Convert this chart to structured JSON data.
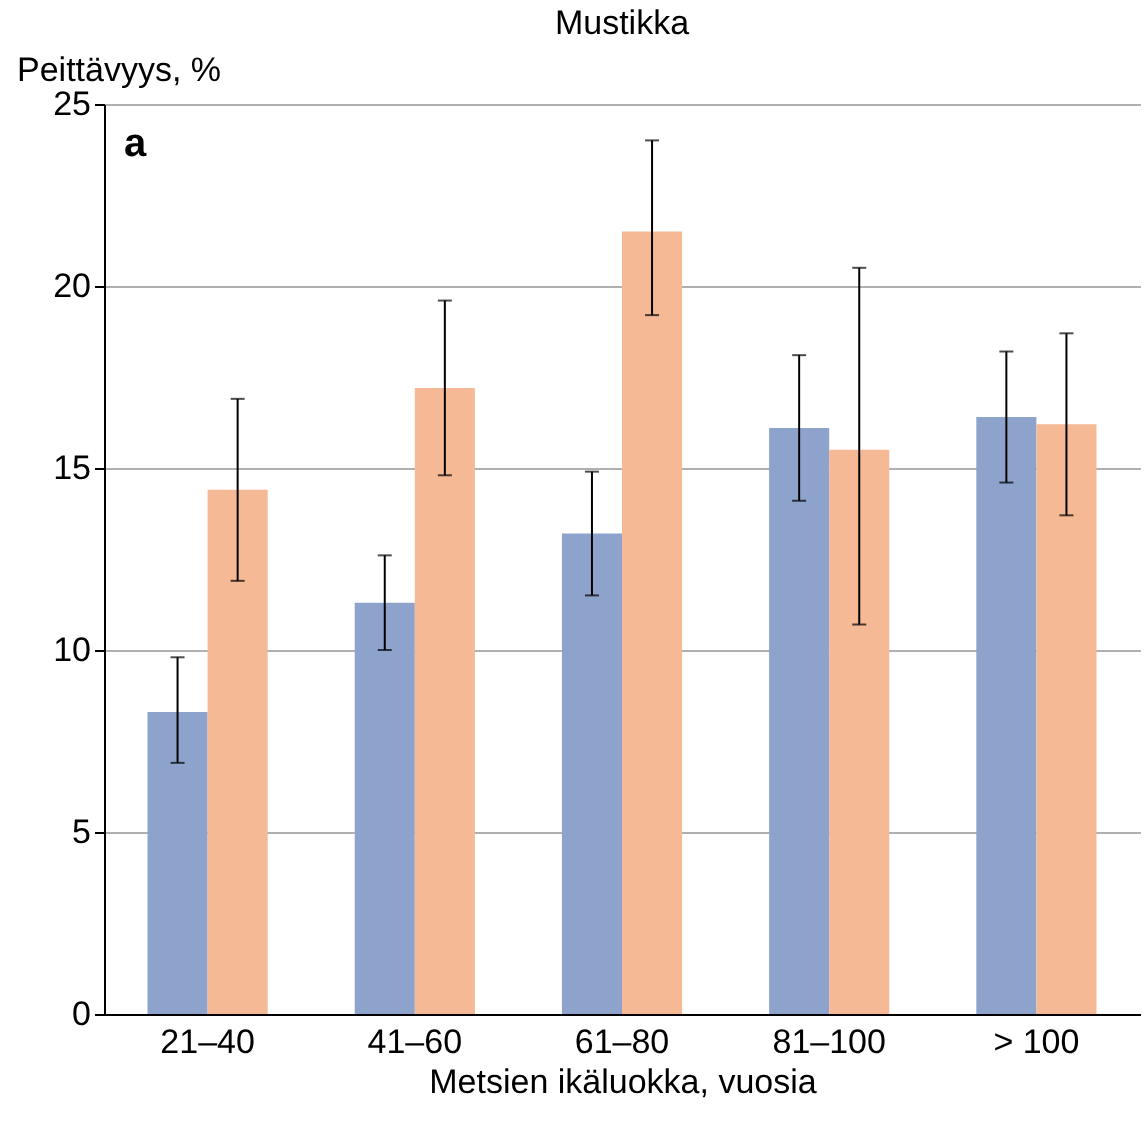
{
  "chart_data": {
    "type": "bar",
    "title": "Mustikka",
    "xlabel": "Metsien ikäluokka, vuosia",
    "ylabel": "Peittävyys, %",
    "annotations": [
      "a"
    ],
    "categories": [
      "21–40",
      "41–60",
      "61–80",
      "81–100",
      "> 100"
    ],
    "series": [
      {
        "color": "#8ea3cc",
        "values": [
          8.3,
          11.3,
          13.2,
          16.1,
          16.4
        ],
        "errors": [
          [
            6.9,
            9.8
          ],
          [
            10.0,
            12.6
          ],
          [
            11.5,
            14.9
          ],
          [
            14.1,
            18.1
          ],
          [
            14.6,
            18.2
          ]
        ]
      },
      {
        "color": "#f5b995",
        "values": [
          14.4,
          17.2,
          21.5,
          15.5,
          16.2
        ],
        "errors": [
          [
            11.9,
            16.9
          ],
          [
            14.8,
            19.6
          ],
          [
            19.2,
            24.0
          ],
          [
            10.7,
            20.5
          ],
          [
            13.7,
            18.7
          ]
        ]
      }
    ],
    "ylim": [
      0,
      25
    ],
    "yticks": [
      0,
      5,
      10,
      15,
      20,
      25
    ],
    "grid": "y"
  }
}
